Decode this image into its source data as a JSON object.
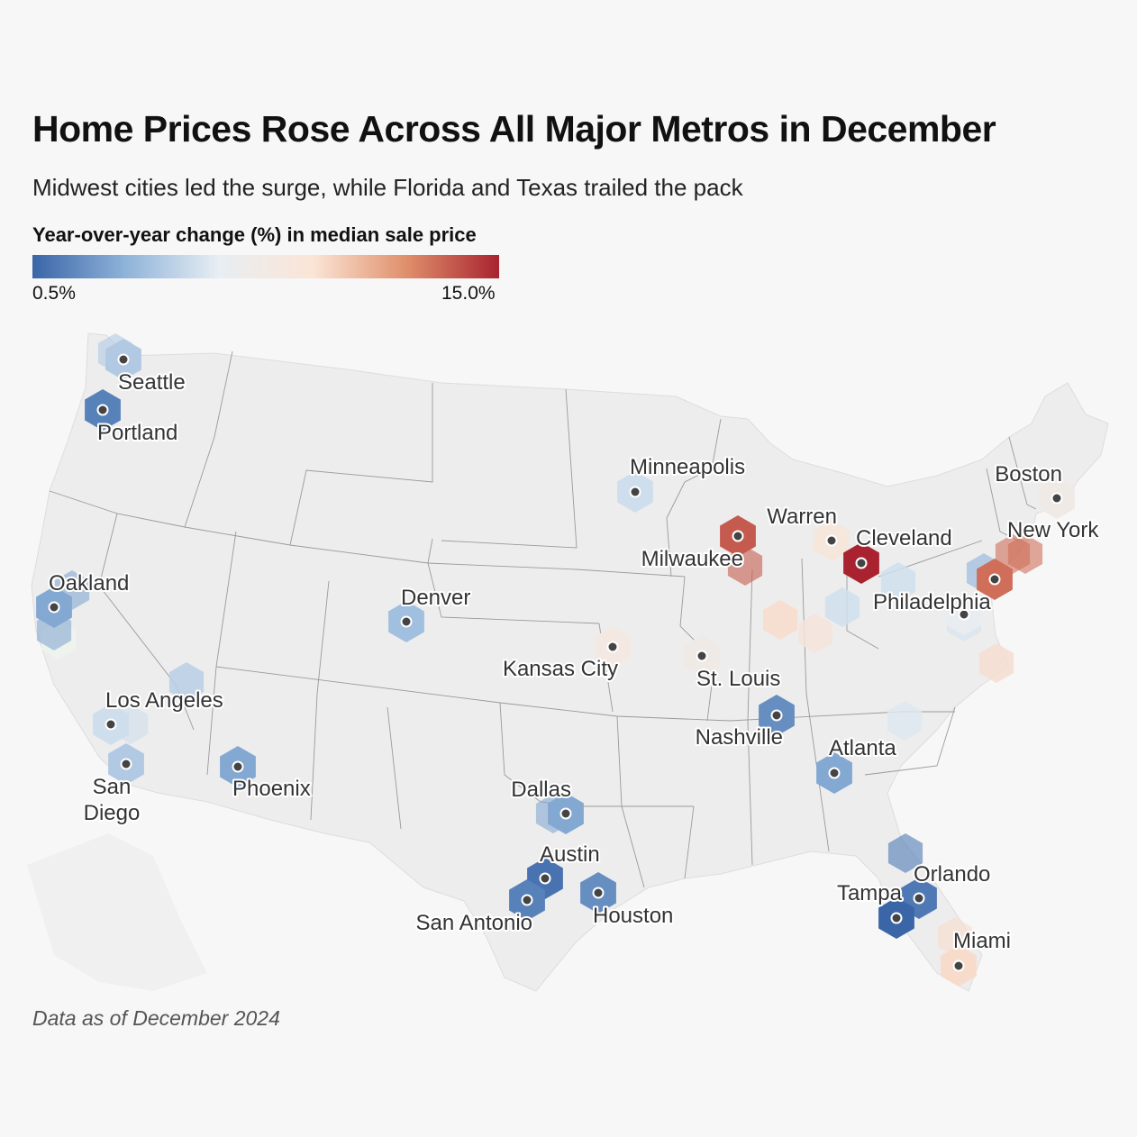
{
  "title": "Home Prices Rose Across All Major Metros in December",
  "subtitle": "Midwest cities led the surge, while Florida and Texas trailed the pack",
  "legend": {
    "title": "Year-over-year change (%) in median sale price",
    "min_label": "0.5%",
    "max_label": "15.0%",
    "colors": [
      "#3a66a8",
      "#8fb3d9",
      "#e8eef3",
      "#fbe5d6",
      "#e0906c",
      "#a8232f"
    ]
  },
  "footnote": "Data as of December 2024",
  "colors": {
    "background": "#f7f7f7",
    "land": "#ededed",
    "border": "#999999",
    "dot": "#444444"
  },
  "chart_data": {
    "type": "hexbin-map",
    "title": "Home Prices Rose Across All Major Metros in December",
    "color_scale": {
      "min": 0.5,
      "max": 15.0,
      "palette": "diverging-blue-red"
    },
    "metros": [
      {
        "name": "Seattle",
        "value": 4.5
      },
      {
        "name": "Portland",
        "value": 1.5
      },
      {
        "name": "Oakland",
        "value": 3.0
      },
      {
        "name": "Los Angeles",
        "value": 5.5
      },
      {
        "name": "San Diego",
        "value": 4.5
      },
      {
        "name": "Phoenix",
        "value": 3.0
      },
      {
        "name": "Denver",
        "value": 4.0
      },
      {
        "name": "Minneapolis",
        "value": 5.5
      },
      {
        "name": "Kansas City",
        "value": 8.0
      },
      {
        "name": "St. Louis",
        "value": 7.5
      },
      {
        "name": "Milwaukee",
        "value": 13.5
      },
      {
        "name": "Warren",
        "value": 8.5
      },
      {
        "name": "Cleveland",
        "value": 15.0
      },
      {
        "name": "Boston",
        "value": 7.5
      },
      {
        "name": "New York",
        "value": 13.0
      },
      {
        "name": "Philadelphia",
        "value": 6.5
      },
      {
        "name": "Nashville",
        "value": 2.0
      },
      {
        "name": "Atlanta",
        "value": 3.0
      },
      {
        "name": "Dallas",
        "value": 3.0
      },
      {
        "name": "Austin",
        "value": 1.0
      },
      {
        "name": "San Antonio",
        "value": 1.5
      },
      {
        "name": "Houston",
        "value": 2.0
      },
      {
        "name": "Orlando",
        "value": 1.2
      },
      {
        "name": "Tampa",
        "value": 0.5
      },
      {
        "name": "Miami",
        "value": 9.5
      }
    ]
  }
}
